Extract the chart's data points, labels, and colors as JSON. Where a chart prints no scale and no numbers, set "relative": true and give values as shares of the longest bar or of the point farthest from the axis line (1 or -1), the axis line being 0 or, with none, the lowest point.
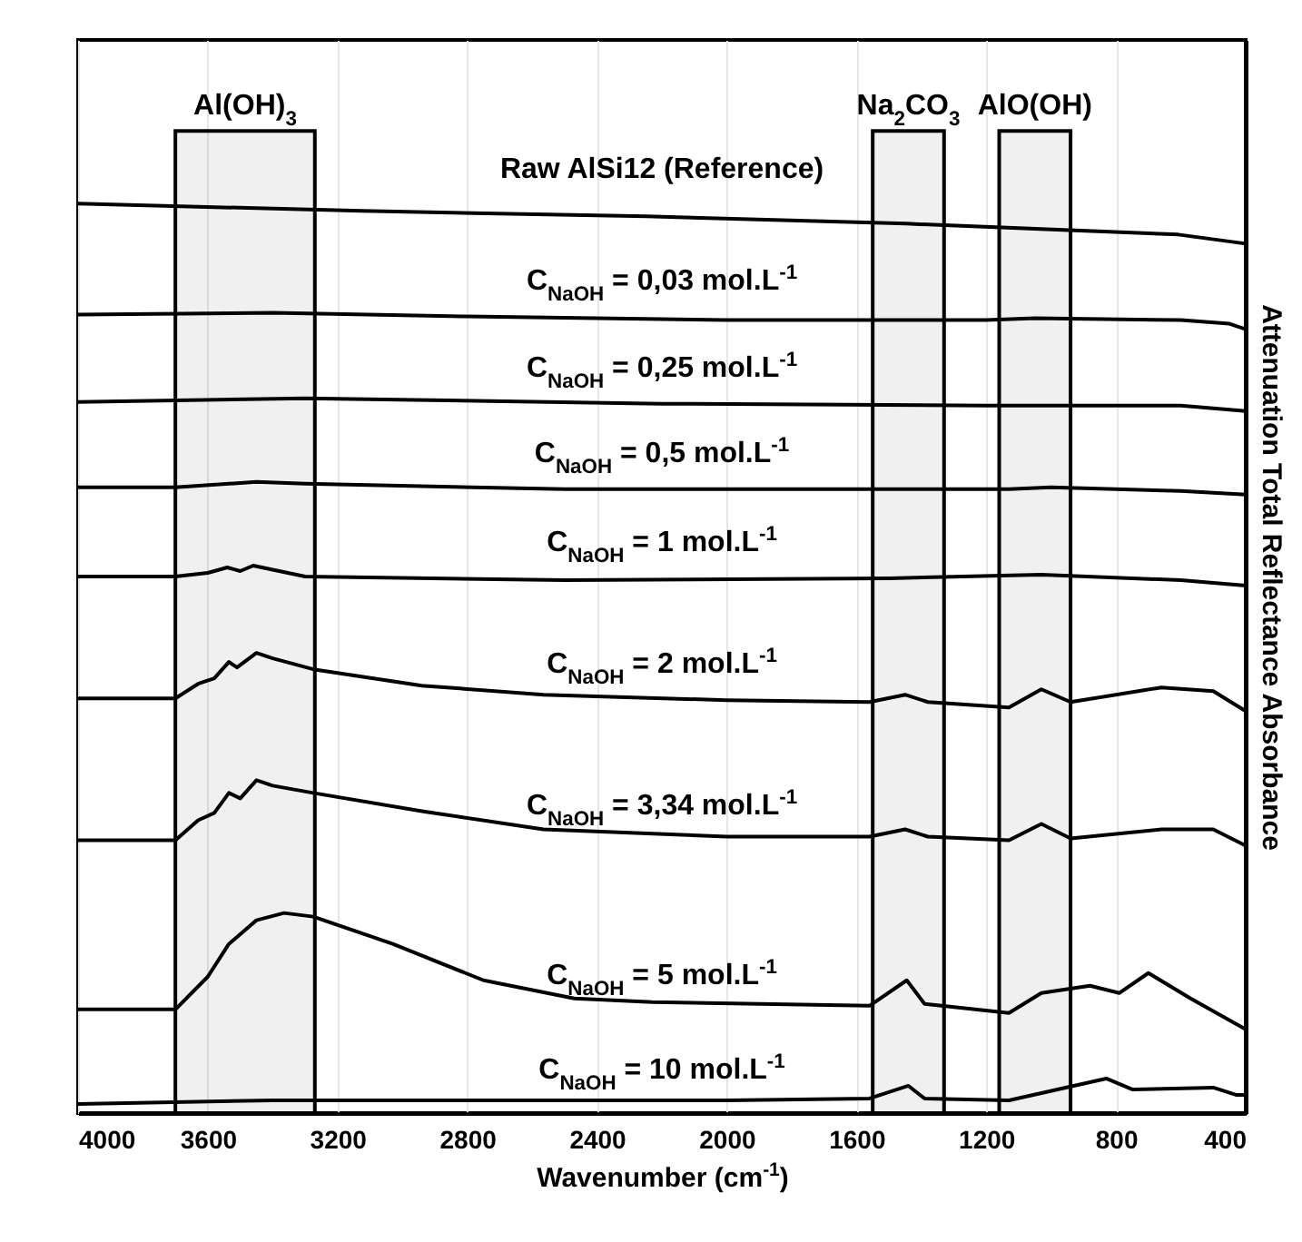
{
  "chart_data": {
    "type": "line",
    "relative": true,
    "xlabel": "Wavenumber (cm$^{-1}$)",
    "ylabel": "Attenuation Total Reflectance Absorbance",
    "xlim": [
      4000,
      400
    ],
    "xticks": [
      4000,
      3600,
      3200,
      2800,
      2400,
      2000,
      1600,
      1200,
      800,
      400
    ],
    "grid": "x",
    "legend": false,
    "marker": "none",
    "line_style": "solid",
    "series": [
      {
        "name": "Raw AlSi12 (Reference)",
        "color": "#000000",
        "x": [
          4000,
          3125,
          2247,
          1447,
          608,
          400
        ],
        "values": [
          1.0,
          0.992,
          0.986,
          0.978,
          0.966,
          0.956
        ]
      },
      {
        "name": "C$_{NaOH}$ = 0,03 mol.L$^{-1}$",
        "color": "#000000",
        "x": [
          4000,
          3400,
          2800,
          2000,
          1200,
          1050,
          600,
          450,
          400
        ],
        "values": [
          0.878,
          0.88,
          0.876,
          0.872,
          0.872,
          0.874,
          0.872,
          0.868,
          0.862
        ]
      },
      {
        "name": "C$_{NaOH}$ = 0,25 mol.L$^{-1}$",
        "color": "#000000",
        "x": [
          4000,
          3300,
          2200,
          1200,
          600,
          400
        ],
        "values": [
          0.782,
          0.786,
          0.78,
          0.778,
          0.778,
          0.772
        ]
      },
      {
        "name": "C$_{NaOH}$ = 0,5 mol.L$^{-1}$",
        "color": "#000000",
        "x": [
          4000,
          3700,
          3450,
          3300,
          2500,
          1130,
          1000,
          600,
          400
        ],
        "values": [
          0.688,
          0.688,
          0.694,
          0.692,
          0.686,
          0.686,
          0.688,
          0.684,
          0.68
        ]
      },
      {
        "name": "C$_{NaOH}$ = 1 mol.L$^{-1}$",
        "color": "#000000",
        "x": [
          4000,
          3700,
          3600,
          3540,
          3500,
          3460,
          3300,
          2500,
          1500,
          1030,
          600,
          400
        ],
        "values": [
          0.59,
          0.59,
          0.594,
          0.6,
          0.596,
          0.602,
          0.59,
          0.586,
          0.588,
          0.592,
          0.586,
          0.58
        ]
      },
      {
        "name": "C$_{NaOH}$ = 2 mol.L$^{-1}$",
        "color": "#000000",
        "x": [
          4000,
          3700,
          3630,
          3580,
          3535,
          3510,
          3450,
          3400,
          3275,
          2940,
          2565,
          2000,
          1560,
          1450,
          1380,
          1130,
          1030,
          940,
          660,
          500,
          400
        ],
        "values": [
          0.456,
          0.456,
          0.472,
          0.478,
          0.496,
          0.49,
          0.506,
          0.5,
          0.488,
          0.47,
          0.46,
          0.454,
          0.452,
          0.46,
          0.452,
          0.446,
          0.466,
          0.452,
          0.468,
          0.464,
          0.442
        ]
      },
      {
        "name": "C$_{NaOH}$ = 3,34 mol.L$^{-1}$",
        "color": "#000000",
        "x": [
          4000,
          3700,
          3630,
          3580,
          3535,
          3500,
          3450,
          3400,
          3275,
          2940,
          2565,
          2000,
          1560,
          1450,
          1380,
          1130,
          1030,
          940,
          660,
          500,
          400
        ],
        "values": [
          0.3,
          0.3,
          0.322,
          0.33,
          0.352,
          0.346,
          0.366,
          0.36,
          0.352,
          0.332,
          0.312,
          0.304,
          0.304,
          0.312,
          0.304,
          0.3,
          0.318,
          0.302,
          0.312,
          0.312,
          0.294
        ]
      },
      {
        "name": "C$_{NaOH}$ = 5 mol.L$^{-1}$",
        "color": "#000000",
        "x": [
          4000,
          3700,
          3600,
          3535,
          3450,
          3365,
          3275,
          3030,
          2750,
          2470,
          2230,
          1560,
          1445,
          1390,
          1130,
          1030,
          880,
          790,
          700,
          570,
          400
        ],
        "values": [
          0.114,
          0.114,
          0.15,
          0.186,
          0.212,
          0.22,
          0.216,
          0.186,
          0.146,
          0.126,
          0.122,
          0.118,
          0.146,
          0.12,
          0.11,
          0.132,
          0.14,
          0.132,
          0.154,
          0.126,
          0.092
        ]
      },
      {
        "name": "C$_{NaOH}$ = 10 mol.L$^{-1}$",
        "color": "#000000",
        "x": [
          4000,
          3400,
          2000,
          1560,
          1440,
          1390,
          1130,
          830,
          750,
          500,
          430,
          400
        ],
        "values": [
          0.01,
          0.014,
          0.014,
          0.016,
          0.03,
          0.016,
          0.014,
          0.038,
          0.026,
          0.028,
          0.02,
          0.02
        ]
      }
    ],
    "bands": [
      {
        "axis": "x",
        "from": 3700,
        "to": 3270,
        "label": "Al(OH)$_{3}$"
      },
      {
        "axis": "x",
        "from": 1550,
        "to": 1330,
        "label": "Na$_{2}$CO$_{3}$"
      },
      {
        "axis": "x",
        "from": 1160,
        "to": 940,
        "label": "AlO(OH)"
      }
    ]
  }
}
